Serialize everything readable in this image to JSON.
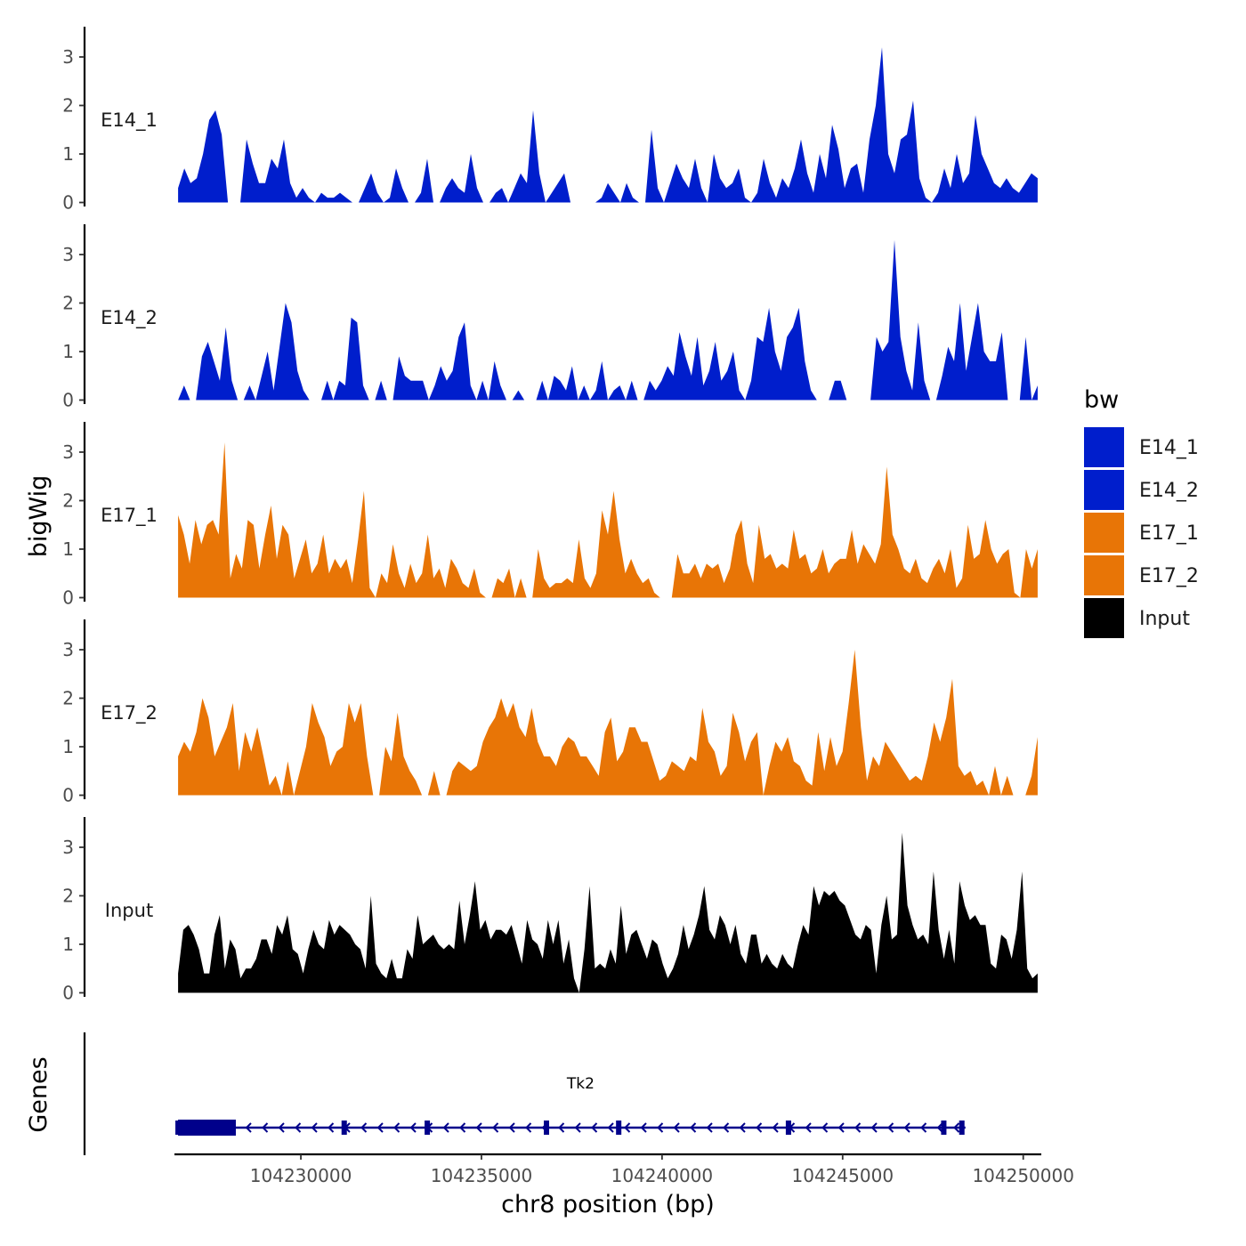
{
  "chart_data": {
    "type": "area",
    "y_axis_title": "bigWig",
    "x_axis_title": "chr8 position (bp)",
    "xlim": [
      104226500,
      104250500
    ],
    "x_ticks": [
      104230000,
      104235000,
      104240000,
      104245000,
      104250000
    ],
    "x_tick_labels": [
      "104230000",
      "104235000",
      "104240000",
      "104245000",
      "104250000"
    ],
    "y_range": [
      0,
      3.6
    ],
    "y_ticks": [
      0,
      1,
      2,
      3
    ],
    "y_tick_labels": [
      "0",
      "1",
      "2",
      "3"
    ],
    "legend": {
      "title": "bw",
      "placement": "right",
      "entries": [
        {
          "label": "E14_1",
          "color": "#001ECC"
        },
        {
          "label": "E14_2",
          "color": "#001ECC"
        },
        {
          "label": "E17_1",
          "color": "#E87506"
        },
        {
          "label": "E17_2",
          "color": "#E87506"
        },
        {
          "label": "Input",
          "color": "#000000"
        }
      ]
    },
    "series": [
      {
        "name": "E14_1",
        "color": "#001ECC",
        "x_start": 104226600,
        "x_end": 104250400,
        "values": [
          0.3,
          0.7,
          0.4,
          0.5,
          1.0,
          1.7,
          1.9,
          1.4,
          0.0,
          0.0,
          0.0,
          1.3,
          0.8,
          0.4,
          0.4,
          0.9,
          0.7,
          1.3,
          0.4,
          0.1,
          0.3,
          0.1,
          0.0,
          0.2,
          0.1,
          0.1,
          0.2,
          0.1,
          0.0,
          0.0,
          0.3,
          0.6,
          0.2,
          0.0,
          0.1,
          0.7,
          0.3,
          0.0,
          0.0,
          0.2,
          0.9,
          0.0,
          0.0,
          0.3,
          0.5,
          0.3,
          0.2,
          1.0,
          0.3,
          0.0,
          0.0,
          0.2,
          0.3,
          0.0,
          0.3,
          0.6,
          0.4,
          1.9,
          0.6,
          0.0,
          0.2,
          0.4,
          0.6,
          0.0,
          0.0,
          0.0,
          0.0,
          0.0,
          0.1,
          0.4,
          0.2,
          0.0,
          0.4,
          0.1,
          0.0,
          0.0,
          1.5,
          0.3,
          0.0,
          0.4,
          0.8,
          0.5,
          0.3,
          0.9,
          0.3,
          0.0,
          1.0,
          0.5,
          0.3,
          0.4,
          0.7,
          0.1,
          0.0,
          0.2,
          0.9,
          0.4,
          0.1,
          0.5,
          0.3,
          0.7,
          1.3,
          0.6,
          0.2,
          1.0,
          0.5,
          1.6,
          1.1,
          0.3,
          0.7,
          0.8,
          0.2,
          1.3,
          2.0,
          3.2,
          1.0,
          0.6,
          1.3,
          1.4,
          2.1,
          0.5,
          0.1,
          0.0,
          0.2,
          0.7,
          0.3,
          1.0,
          0.4,
          0.6,
          1.8,
          1.0,
          0.7,
          0.4,
          0.3,
          0.5,
          0.3,
          0.2,
          0.4,
          0.6,
          0.5
        ]
      },
      {
        "name": "E14_2",
        "color": "#001ECC",
        "x_start": 104226600,
        "x_end": 104250400,
        "values": [
          0.0,
          0.3,
          0.0,
          0.0,
          0.9,
          1.2,
          0.8,
          0.4,
          1.5,
          0.4,
          0.0,
          0.0,
          0.3,
          0.0,
          0.5,
          1.0,
          0.2,
          1.1,
          2.0,
          1.6,
          0.6,
          0.2,
          0.0,
          0.0,
          0.0,
          0.4,
          0.0,
          0.4,
          0.3,
          1.7,
          1.6,
          0.3,
          0.0,
          0.0,
          0.4,
          0.0,
          0.0,
          0.9,
          0.5,
          0.4,
          0.4,
          0.4,
          0.0,
          0.3,
          0.7,
          0.4,
          0.6,
          1.3,
          1.6,
          0.3,
          0.0,
          0.4,
          0.0,
          0.8,
          0.3,
          0.0,
          0.0,
          0.2,
          0.0,
          0.0,
          0.0,
          0.4,
          0.0,
          0.5,
          0.4,
          0.2,
          0.7,
          0.0,
          0.3,
          0.0,
          0.2,
          0.8,
          0.0,
          0.2,
          0.3,
          0.0,
          0.4,
          0.0,
          0.0,
          0.4,
          0.2,
          0.4,
          0.7,
          0.5,
          1.4,
          0.9,
          0.5,
          1.3,
          0.3,
          0.6,
          1.2,
          0.4,
          0.6,
          1.0,
          0.2,
          0.0,
          0.4,
          1.3,
          1.2,
          1.9,
          1.0,
          0.6,
          1.3,
          1.5,
          1.9,
          0.8,
          0.2,
          0.0,
          0.0,
          0.0,
          0.4,
          0.4,
          0.0,
          0.0,
          0.0,
          0.0,
          0.0,
          1.3,
          1.0,
          1.2,
          3.3,
          1.3,
          0.6,
          0.2,
          1.6,
          0.4,
          0.0,
          0.0,
          0.5,
          1.1,
          0.8,
          2.0,
          0.6,
          1.3,
          2.0,
          1.0,
          0.8,
          0.8,
          1.4,
          0.0,
          0.0,
          0.0,
          1.3,
          0.0,
          0.3
        ]
      },
      {
        "name": "E17_1",
        "color": "#E87506",
        "x_start": 104226600,
        "x_end": 104250400,
        "values": [
          1.7,
          1.3,
          0.7,
          1.6,
          1.1,
          1.5,
          1.6,
          1.3,
          3.2,
          0.4,
          0.9,
          0.6,
          1.6,
          1.5,
          0.6,
          1.3,
          1.9,
          0.8,
          1.5,
          1.3,
          0.4,
          0.8,
          1.2,
          0.5,
          0.7,
          1.3,
          0.5,
          0.8,
          0.6,
          0.8,
          0.3,
          1.2,
          2.2,
          0.2,
          0.0,
          0.5,
          0.3,
          1.1,
          0.5,
          0.2,
          0.7,
          0.3,
          0.5,
          1.3,
          0.4,
          0.6,
          0.2,
          0.8,
          0.6,
          0.3,
          0.2,
          0.6,
          0.1,
          0.0,
          0.0,
          0.4,
          0.3,
          0.6,
          0.0,
          0.4,
          0.0,
          0.0,
          1.0,
          0.4,
          0.2,
          0.3,
          0.3,
          0.4,
          0.3,
          1.2,
          0.4,
          0.2,
          0.5,
          1.8,
          1.3,
          2.2,
          1.2,
          0.5,
          0.8,
          0.5,
          0.3,
          0.4,
          0.1,
          0.0,
          0.0,
          0.0,
          0.9,
          0.5,
          0.5,
          0.7,
          0.4,
          0.7,
          0.6,
          0.7,
          0.3,
          0.6,
          1.3,
          1.6,
          0.7,
          0.3,
          1.5,
          0.8,
          0.9,
          0.6,
          0.7,
          0.6,
          1.4,
          0.8,
          0.9,
          0.5,
          0.6,
          1.0,
          0.5,
          0.7,
          0.8,
          0.8,
          1.4,
          0.7,
          1.1,
          0.9,
          0.7,
          1.1,
          2.7,
          1.3,
          1.0,
          0.6,
          0.5,
          0.8,
          0.4,
          0.3,
          0.6,
          0.8,
          0.5,
          1.0,
          0.2,
          0.4,
          1.5,
          0.8,
          0.9,
          1.6,
          1.0,
          0.7,
          0.9,
          1.0,
          0.1,
          0.0,
          1.0,
          0.6,
          1.0
        ]
      },
      {
        "name": "E17_2",
        "color": "#E87506",
        "x_start": 104226600,
        "x_end": 104250400,
        "values": [
          0.8,
          1.1,
          0.9,
          1.3,
          2.0,
          1.6,
          0.8,
          1.1,
          1.4,
          1.9,
          0.5,
          1.3,
          0.9,
          1.4,
          0.8,
          0.2,
          0.4,
          0.0,
          0.7,
          0.0,
          0.5,
          1.0,
          1.9,
          1.5,
          1.2,
          0.6,
          0.9,
          1.0,
          1.9,
          1.5,
          1.9,
          0.8,
          0.0,
          0.0,
          1.0,
          0.7,
          1.7,
          0.8,
          0.5,
          0.3,
          0.0,
          0.0,
          0.5,
          0.0,
          0.0,
          0.5,
          0.7,
          0.6,
          0.5,
          0.6,
          1.1,
          1.4,
          1.6,
          2.0,
          1.6,
          1.9,
          1.4,
          1.2,
          1.8,
          1.1,
          0.8,
          0.8,
          0.6,
          1.0,
          1.2,
          1.1,
          0.8,
          0.8,
          0.6,
          0.4,
          1.3,
          1.6,
          0.7,
          0.9,
          1.4,
          1.4,
          1.1,
          1.1,
          0.7,
          0.3,
          0.4,
          0.7,
          0.6,
          0.5,
          0.8,
          0.7,
          1.8,
          1.1,
          0.9,
          0.4,
          0.6,
          1.7,
          1.3,
          0.7,
          1.1,
          1.3,
          0.0,
          0.6,
          1.1,
          0.9,
          1.2,
          0.7,
          0.6,
          0.3,
          0.2,
          1.3,
          0.5,
          1.2,
          0.6,
          0.9,
          1.9,
          3.0,
          1.4,
          0.3,
          0.8,
          0.6,
          1.1,
          0.9,
          0.7,
          0.5,
          0.3,
          0.4,
          0.3,
          0.8,
          1.5,
          1.1,
          1.6,
          2.4,
          0.6,
          0.4,
          0.5,
          0.2,
          0.3,
          0.0,
          0.6,
          0.0,
          0.4,
          0.0,
          0.0,
          0.0,
          0.4,
          1.2
        ]
      },
      {
        "name": "Input",
        "color": "#000000",
        "x_start": 104226600,
        "x_end": 104250400,
        "values": [
          0.4,
          1.3,
          1.4,
          1.2,
          0.9,
          0.4,
          0.4,
          1.2,
          1.6,
          0.5,
          1.1,
          0.9,
          0.3,
          0.5,
          0.5,
          0.7,
          1.1,
          1.1,
          0.8,
          1.4,
          1.2,
          1.6,
          0.9,
          0.8,
          0.4,
          0.9,
          1.3,
          1.0,
          0.9,
          1.5,
          1.2,
          1.4,
          1.3,
          1.2,
          1.0,
          0.9,
          0.5,
          2.0,
          0.6,
          0.4,
          0.3,
          0.7,
          0.3,
          0.3,
          0.9,
          0.7,
          1.6,
          1.0,
          1.1,
          1.2,
          1.0,
          0.9,
          1.0,
          0.9,
          1.9,
          1.0,
          1.6,
          2.3,
          1.3,
          1.5,
          1.1,
          1.3,
          1.3,
          1.2,
          1.4,
          1.0,
          0.6,
          1.5,
          1.1,
          1.0,
          0.7,
          1.5,
          1.0,
          1.5,
          0.6,
          1.1,
          0.3,
          0.0,
          0.9,
          2.2,
          0.5,
          0.6,
          0.5,
          0.9,
          0.6,
          1.8,
          0.8,
          1.2,
          1.3,
          1.0,
          0.7,
          1.1,
          1.0,
          0.6,
          0.3,
          0.5,
          0.8,
          1.4,
          0.9,
          1.2,
          1.6,
          2.2,
          1.3,
          1.1,
          1.6,
          1.4,
          1.0,
          1.4,
          0.8,
          0.6,
          1.2,
          1.2,
          0.6,
          0.8,
          0.6,
          0.5,
          0.8,
          0.6,
          0.5,
          1.0,
          1.4,
          1.2,
          2.2,
          1.8,
          2.1,
          2.0,
          2.1,
          1.9,
          1.8,
          1.5,
          1.2,
          1.1,
          1.4,
          1.3,
          0.4,
          1.4,
          2.0,
          1.1,
          1.2,
          3.3,
          1.8,
          1.4,
          1.1,
          1.2,
          1.0,
          2.5,
          1.3,
          0.7,
          1.3,
          0.6,
          2.3,
          1.8,
          1.5,
          1.6,
          1.4,
          1.4,
          0.6,
          0.5,
          1.2,
          1.1,
          0.7,
          1.3,
          2.5,
          0.5,
          0.3,
          0.4
        ]
      }
    ],
    "gene_track": {
      "title": "Genes",
      "gene": {
        "name": "Tk2",
        "start": 104226600,
        "end": 104248400,
        "strand": "-",
        "thick_end": 104228200,
        "exons": [
          104226600,
          104231200,
          104233500,
          104236800,
          104238800,
          104243500,
          104247800,
          104248300
        ]
      }
    }
  }
}
